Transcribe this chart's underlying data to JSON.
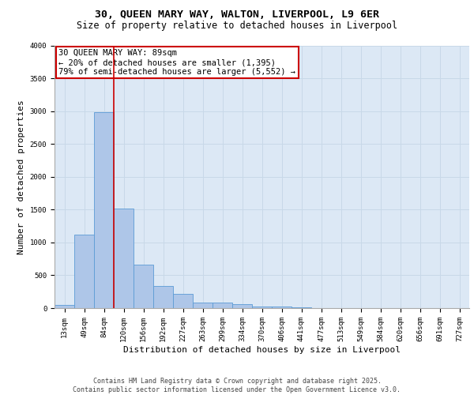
{
  "title_line1": "30, QUEEN MARY WAY, WALTON, LIVERPOOL, L9 6ER",
  "title_line2": "Size of property relative to detached houses in Liverpool",
  "xlabel": "Distribution of detached houses by size in Liverpool",
  "ylabel": "Number of detached properties",
  "categories": [
    "13sqm",
    "49sqm",
    "84sqm",
    "120sqm",
    "156sqm",
    "192sqm",
    "227sqm",
    "263sqm",
    "299sqm",
    "334sqm",
    "370sqm",
    "406sqm",
    "441sqm",
    "477sqm",
    "513sqm",
    "549sqm",
    "584sqm",
    "620sqm",
    "656sqm",
    "691sqm",
    "727sqm"
  ],
  "values": [
    50,
    1120,
    2980,
    1520,
    660,
    340,
    215,
    90,
    90,
    60,
    30,
    25,
    10,
    5,
    0,
    0,
    0,
    0,
    0,
    0,
    0
  ],
  "bar_color": "#aec6e8",
  "bar_edge_color": "#5b9bd5",
  "vline_color": "#cc0000",
  "vline_x_index": 2,
  "annotation_box_text": "30 QUEEN MARY WAY: 89sqm\n← 20% of detached houses are smaller (1,395)\n79% of semi-detached houses are larger (5,552) →",
  "box_edge_color": "#cc0000",
  "ylim": [
    0,
    4000
  ],
  "yticks": [
    0,
    500,
    1000,
    1500,
    2000,
    2500,
    3000,
    3500,
    4000
  ],
  "grid_color": "#c8d8e8",
  "background_color": "#dce8f5",
  "footer_line1": "Contains HM Land Registry data © Crown copyright and database right 2025.",
  "footer_line2": "Contains public sector information licensed under the Open Government Licence v3.0.",
  "title_fontsize": 9.5,
  "subtitle_fontsize": 8.5,
  "tick_fontsize": 6.5,
  "label_fontsize": 8,
  "annotation_fontsize": 7.5,
  "footer_fontsize": 6
}
